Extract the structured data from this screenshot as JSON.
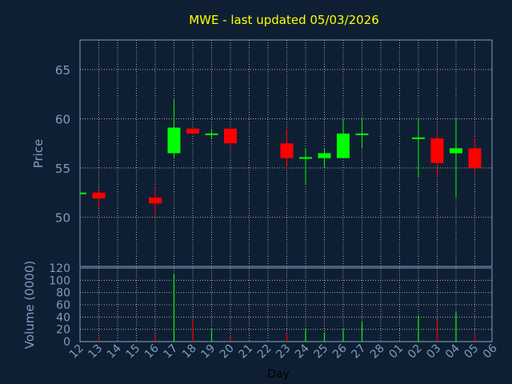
{
  "chart_data": [
    {
      "type": "candlestick",
      "title": "MWE - last updated 05/03/2026",
      "xlabel": "Day",
      "ylabel": "Price",
      "ylim": [
        45,
        68
      ],
      "yticks": [
        50,
        55,
        60,
        65
      ],
      "grid": true,
      "categories": [
        "12",
        "13",
        "14",
        "15",
        "16",
        "17",
        "18",
        "19",
        "20",
        "21",
        "22",
        "23",
        "24",
        "25",
        "26",
        "27",
        "28",
        "01",
        "02",
        "03",
        "04",
        "05",
        "06"
      ],
      "candles": [
        {
          "day": "12",
          "open": 52.5,
          "high": 52.5,
          "low": 52.5,
          "close": 52.5
        },
        {
          "day": "13",
          "open": 52.5,
          "high": 53.0,
          "low": 51.0,
          "close": 51.9
        },
        {
          "day": "16",
          "open": 52.0,
          "high": 53.1,
          "low": 50.0,
          "close": 51.4
        },
        {
          "day": "17",
          "open": 56.5,
          "high": 62.0,
          "low": 56.0,
          "close": 59.1
        },
        {
          "day": "18",
          "open": 59.0,
          "high": 59.0,
          "low": 58.4,
          "close": 58.5
        },
        {
          "day": "19",
          "open": 58.4,
          "high": 59.0,
          "low": 58.0,
          "close": 58.5
        },
        {
          "day": "20",
          "open": 59.0,
          "high": 59.0,
          "low": 57.0,
          "close": 57.5
        },
        {
          "day": "23",
          "open": 57.5,
          "high": 59.0,
          "low": 55.0,
          "close": 56.0
        },
        {
          "day": "24",
          "open": 56.0,
          "high": 57.0,
          "low": 53.4,
          "close": 56.1
        },
        {
          "day": "25",
          "open": 56.0,
          "high": 57.0,
          "low": 55.0,
          "close": 56.5
        },
        {
          "day": "26",
          "open": 56.0,
          "high": 60.0,
          "low": 56.0,
          "close": 58.5
        },
        {
          "day": "27",
          "open": 58.4,
          "high": 60.0,
          "low": 57.0,
          "close": 58.5
        },
        {
          "day": "02",
          "open": 58.0,
          "high": 60.0,
          "low": 54.0,
          "close": 58.1
        },
        {
          "day": "03",
          "open": 58.0,
          "high": 58.5,
          "low": 54.0,
          "close": 55.5
        },
        {
          "day": "04",
          "open": 56.5,
          "high": 60.0,
          "low": 52.0,
          "close": 57.0
        },
        {
          "day": "05",
          "open": 57.0,
          "high": 58.0,
          "low": 54.5,
          "close": 55.0
        }
      ],
      "colors": {
        "up": "#00ff00",
        "down": "#ff0000",
        "title": "#ffff00",
        "axis": "#7f9cbf",
        "grid": "#c8c8c8",
        "background": "#0f1f33"
      }
    },
    {
      "type": "bar",
      "xlabel": "Day",
      "ylabel": "Volume (0000)",
      "ylim": [
        0,
        120
      ],
      "yticks": [
        0,
        20,
        40,
        60,
        80,
        100,
        120
      ],
      "grid": true,
      "categories": [
        "12",
        "13",
        "14",
        "15",
        "16",
        "17",
        "18",
        "19",
        "20",
        "21",
        "22",
        "23",
        "24",
        "25",
        "26",
        "27",
        "28",
        "01",
        "02",
        "03",
        "04",
        "05",
        "06"
      ],
      "bars": [
        {
          "day": "13",
          "value": 8,
          "direction": "down"
        },
        {
          "day": "16",
          "value": 12,
          "direction": "down"
        },
        {
          "day": "17",
          "value": 110,
          "direction": "up"
        },
        {
          "day": "18",
          "value": 35,
          "direction": "down"
        },
        {
          "day": "19",
          "value": 20,
          "direction": "up"
        },
        {
          "day": "20",
          "value": 10,
          "direction": "down"
        },
        {
          "day": "23",
          "value": 12,
          "direction": "down"
        },
        {
          "day": "24",
          "value": 20,
          "direction": "up"
        },
        {
          "day": "25",
          "value": 15,
          "direction": "up"
        },
        {
          "day": "26",
          "value": 20,
          "direction": "up"
        },
        {
          "day": "27",
          "value": 32,
          "direction": "up"
        },
        {
          "day": "02",
          "value": 42,
          "direction": "up"
        },
        {
          "day": "03",
          "value": 36,
          "direction": "down"
        },
        {
          "day": "04",
          "value": 48,
          "direction": "up"
        },
        {
          "day": "05",
          "value": 12,
          "direction": "down"
        }
      ]
    }
  ]
}
